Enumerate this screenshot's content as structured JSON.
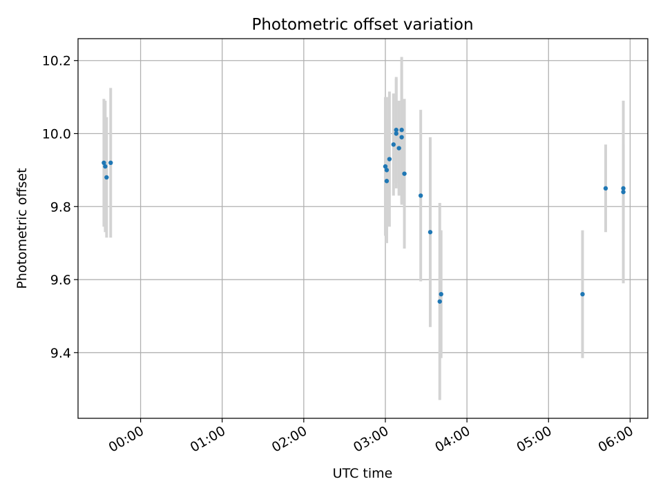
{
  "chart_data": {
    "type": "scatter",
    "title": "Photometric offset variation",
    "xlabel": "UTC time",
    "ylabel": "Photometric offset",
    "x_unit": "UTC time (HH:MM, hours from 00:00)",
    "xlim": [
      "-00:46",
      "06:13"
    ],
    "ylim": [
      9.22,
      10.26
    ],
    "x_ticks": [
      "00:00",
      "01:00",
      "02:00",
      "03:00",
      "04:00",
      "05:00",
      "06:00"
    ],
    "y_ticks": [
      "9.4",
      "9.6",
      "9.8",
      "10.0",
      "10.2"
    ],
    "grid": true,
    "marker_color": "#1f77b4",
    "errorbar_color": "#d3d3d3",
    "series": [
      {
        "points": [
          {
            "x": "-00:27",
            "y": 9.92,
            "err": 0.175
          },
          {
            "x": "-00:26",
            "y": 9.91,
            "err": 0.18
          },
          {
            "x": "-00:25",
            "y": 9.88,
            "err": 0.165
          },
          {
            "x": "-00:22",
            "y": 9.92,
            "err": 0.205
          },
          {
            "x": "03:00",
            "y": 9.91,
            "err": 0.19
          },
          {
            "x": "03:01",
            "y": 9.87,
            "err": 0.17
          },
          {
            "x": "03:01",
            "y": 9.9,
            "err": 0.2
          },
          {
            "x": "03:03",
            "y": 9.93,
            "err": 0.185
          },
          {
            "x": "03:06",
            "y": 9.97,
            "err": 0.14
          },
          {
            "x": "03:08",
            "y": 10.0,
            "err": 0.15
          },
          {
            "x": "03:08",
            "y": 10.01,
            "err": 0.145
          },
          {
            "x": "03:10",
            "y": 9.96,
            "err": 0.13
          },
          {
            "x": "03:12",
            "y": 9.99,
            "err": 0.185
          },
          {
            "x": "03:12",
            "y": 10.01,
            "err": 0.2
          },
          {
            "x": "03:14",
            "y": 9.89,
            "err": 0.205
          },
          {
            "x": "03:26",
            "y": 9.83,
            "err": 0.235
          },
          {
            "x": "03:33",
            "y": 9.73,
            "err": 0.26
          },
          {
            "x": "03:40",
            "y": 9.54,
            "err": 0.27
          },
          {
            "x": "03:41",
            "y": 9.56,
            "err": 0.175
          },
          {
            "x": "05:25",
            "y": 9.56,
            "err": 0.175
          },
          {
            "x": "05:42",
            "y": 9.85,
            "err": 0.12
          },
          {
            "x": "05:55",
            "y": 9.85,
            "err": 0.12
          },
          {
            "x": "05:55",
            "y": 9.84,
            "err": 0.25
          }
        ]
      }
    ]
  }
}
